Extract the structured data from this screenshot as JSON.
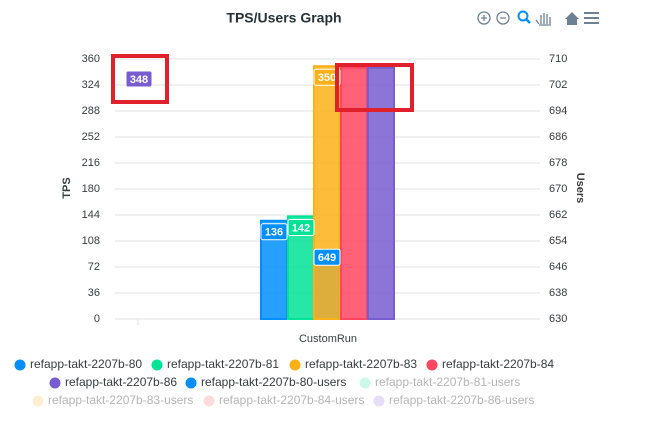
{
  "chart_data": {
    "type": "bar",
    "title": "TPS/Users Graph",
    "categories": [
      "CustomRun"
    ],
    "xlabel": "CustomRun",
    "ylabel": "TPS",
    "y2label": "Users",
    "ylim": [
      0,
      360
    ],
    "yticks": [
      0,
      36,
      72,
      108,
      144,
      180,
      216,
      252,
      288,
      324,
      360
    ],
    "y2lim": [
      630,
      710
    ],
    "y2ticks": [
      630,
      638,
      646,
      654,
      662,
      670,
      678,
      686,
      694,
      702,
      710
    ],
    "grid": true,
    "series": [
      {
        "name": "refapp-takt-2207b-80",
        "color": "#008FFB",
        "values": [
          136
        ]
      },
      {
        "name": "refapp-takt-2207b-81",
        "color": "#00E396",
        "values": [
          142
        ]
      },
      {
        "name": "refapp-takt-2207b-83",
        "color": "#FEB019",
        "values": [
          350
        ]
      },
      {
        "name": "refapp-takt-2207b-84",
        "color": "#FF4560",
        "values": [
          348
        ],
        "data_labels": false
      },
      {
        "name": "refapp-takt-2207b-86",
        "color": "#775DD0",
        "values": [
          348
        ]
      },
      {
        "name": "refapp-takt-2207b-80-users",
        "color": "#008FFB",
        "values": [
          649
        ],
        "axis": "y2"
      },
      {
        "name": "refapp-takt-2207b-81-users",
        "color": "#00E396",
        "values": [
          null
        ],
        "axis": "y2",
        "hidden": true
      },
      {
        "name": "refapp-takt-2207b-83-users",
        "color": "#FEB019",
        "values": [
          null
        ],
        "axis": "y2",
        "hidden": true
      },
      {
        "name": "refapp-takt-2207b-84-users",
        "color": "#FF4560",
        "values": [
          null
        ],
        "axis": "y2",
        "hidden": true
      },
      {
        "name": "refapp-takt-2207b-86-users",
        "color": "#775DD0",
        "values": [
          null
        ],
        "axis": "y2",
        "hidden": true
      }
    ]
  }
}
